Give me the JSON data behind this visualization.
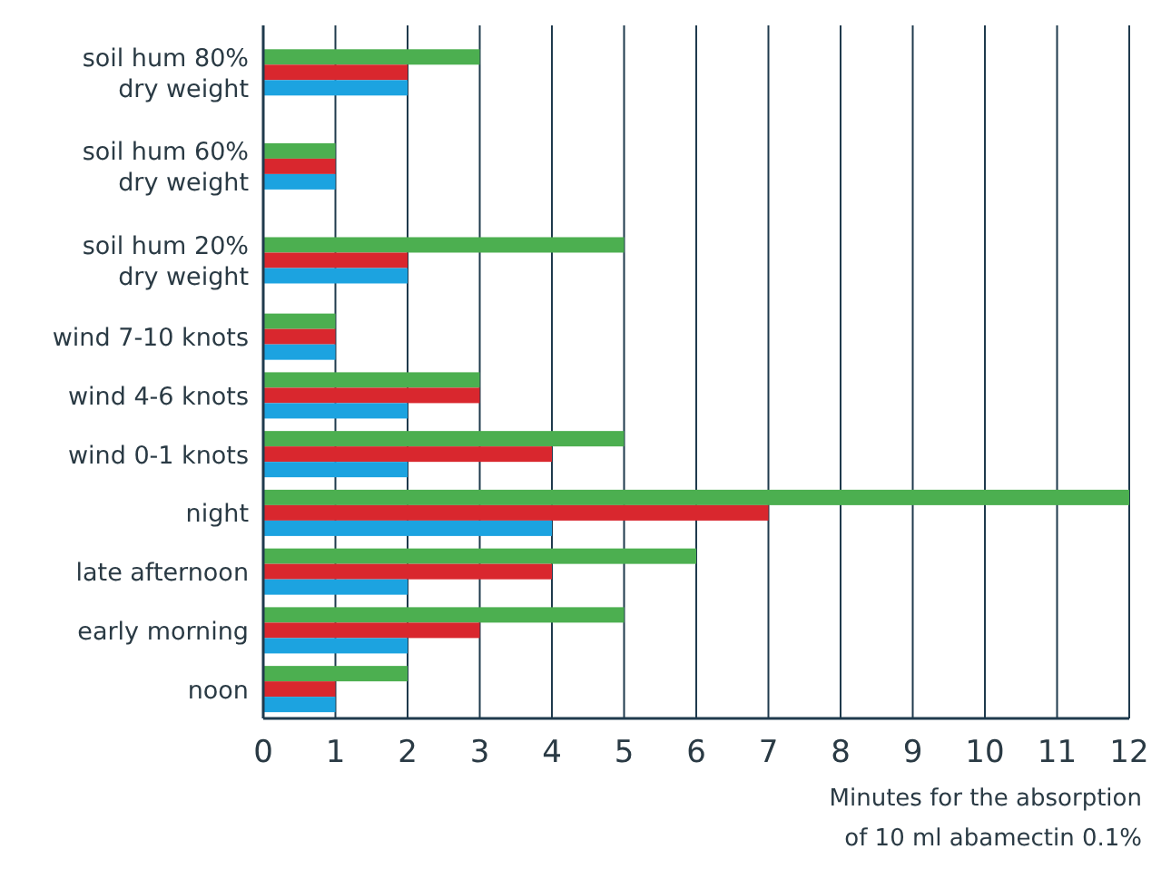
{
  "chart_data": {
    "type": "bar",
    "orientation": "horizontal",
    "xlabel": "Minutes for the absorption of 10 ml abamectin 0.1%",
    "categories": [
      "soil hum 80% dry weight",
      "soil hum 60% dry weight",
      "soil hum 20% dry weight",
      "wind 7-10 knots",
      "wind 4-6 knots",
      "wind 0-1 knots",
      "night",
      "late afternoon",
      "early morning",
      "noon"
    ],
    "series": [
      {
        "color": "#4caf50",
        "values": [
          3,
          1,
          5,
          1,
          3,
          5,
          12,
          6,
          5,
          2
        ]
      },
      {
        "color": "#d9272e",
        "values": [
          2,
          1,
          2,
          1,
          3,
          4,
          7,
          4,
          3,
          1
        ]
      },
      {
        "color": "#1ca3e0",
        "values": [
          2,
          1,
          2,
          1,
          2,
          2,
          4,
          2,
          2,
          1
        ]
      }
    ],
    "xlim": [
      0,
      12
    ],
    "xticks": [
      0,
      1,
      2,
      3,
      4,
      5,
      6,
      7,
      8,
      9,
      10,
      11,
      12
    ],
    "grid": "x"
  }
}
